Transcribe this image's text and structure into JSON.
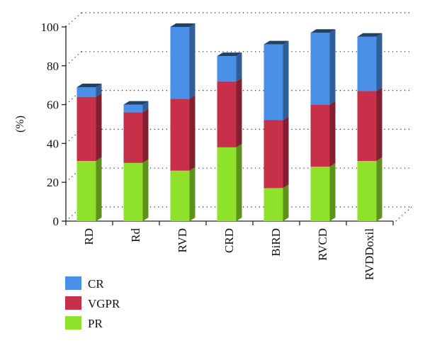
{
  "chart_data": {
    "type": "bar",
    "stacked": true,
    "three_d": true,
    "title": "",
    "xlabel": "",
    "ylabel": "(%)",
    "ylim": [
      0,
      100
    ],
    "yticks": [
      0,
      20,
      40,
      60,
      80,
      100
    ],
    "grid": true,
    "legend_position": "bottom-left",
    "categories": [
      "RD",
      "Rd",
      "RVD",
      "CRD",
      "BiRD",
      "RVCD",
      "RVDDoxil"
    ],
    "series": [
      {
        "name": "PR",
        "color": "#8fe22b",
        "values": [
          31,
          30,
          26,
          38,
          17,
          28,
          31
        ]
      },
      {
        "name": "VGPR",
        "color": "#c8304a",
        "values": [
          33,
          26,
          37,
          34,
          35,
          32,
          36
        ]
      },
      {
        "name": "CR",
        "color": "#4a90e8",
        "values": [
          5,
          4,
          37,
          13,
          39,
          37,
          28
        ]
      }
    ],
    "legend_order": [
      "CR",
      "VGPR",
      "PR"
    ]
  }
}
